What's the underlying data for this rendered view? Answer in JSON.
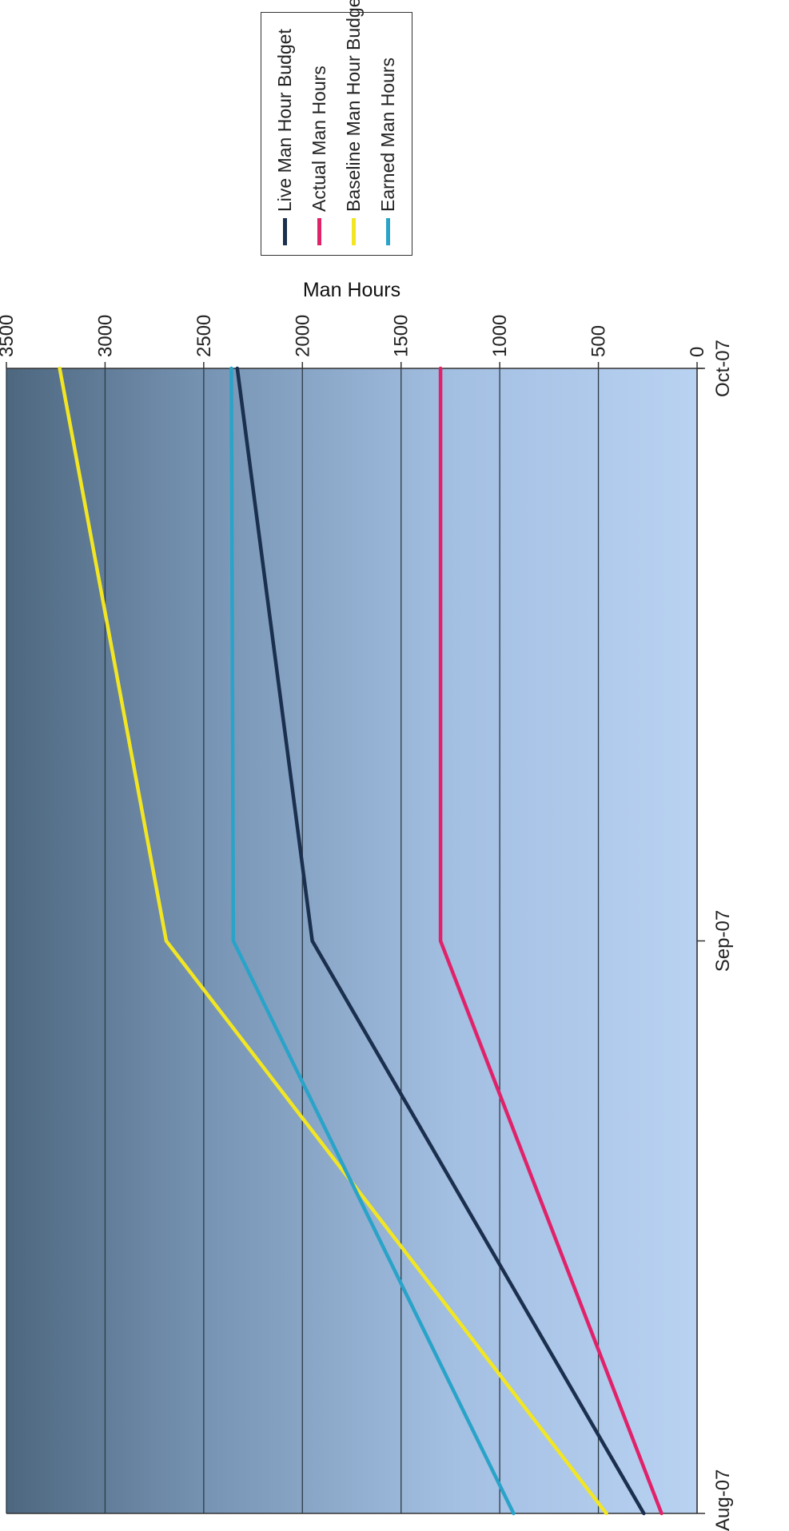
{
  "chart_data": {
    "type": "line",
    "title": "",
    "xlabel": "",
    "ylabel": "Man Hours",
    "categories": [
      "Aug-07",
      "Sep-07",
      "Oct-07"
    ],
    "ylim": [
      0,
      3500
    ],
    "yticks": [
      0,
      500,
      1000,
      1500,
      2000,
      2500,
      3000,
      3500
    ],
    "grid": true,
    "legend_position": "right",
    "series": [
      {
        "name": "Live Man Hour Budget",
        "color": "#1b2f4e",
        "values": [
          270,
          1950,
          2330
        ]
      },
      {
        "name": "Actual Man Hours",
        "color": "#e0226a",
        "values": [
          180,
          1300,
          1300
        ]
      },
      {
        "name": "Baseline Man Hour Budget",
        "color": "#f2e623",
        "values": [
          460,
          2690,
          3230
        ]
      },
      {
        "name": "Earned Man Hours",
        "color": "#2aa3c9",
        "values": [
          930,
          2350,
          2360
        ]
      }
    ]
  }
}
